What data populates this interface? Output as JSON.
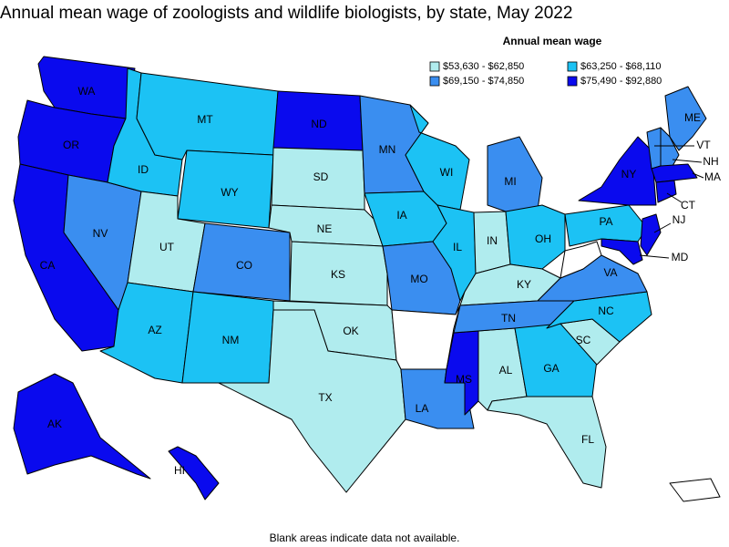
{
  "title": "Annual mean wage of zoologists and wildlife biologists, by state, May 2022",
  "legend": {
    "title": "Annual mean wage",
    "items": [
      {
        "label": "$53,630 - $62,850",
        "color": "#b0ecee",
        "states": [
          "UT",
          "SD",
          "NE",
          "KS",
          "OK",
          "TX",
          "KY",
          "IN",
          "AL",
          "SC",
          "FL"
        ]
      },
      {
        "label": "$63,250 - $68,110",
        "color": "#1cc2f4",
        "states": [
          "MT",
          "ID",
          "WY",
          "AZ",
          "NM",
          "IA",
          "WI",
          "IL",
          "OH",
          "PA",
          "GA",
          "NC"
        ]
      },
      {
        "label": "$69,150 - $74,850",
        "color": "#3a8ef0",
        "states": [
          "NV",
          "CO",
          "MN",
          "MI",
          "MO",
          "LA",
          "TN",
          "VA",
          "ME",
          "NH",
          "VT"
        ]
      },
      {
        "label": "$75,490 - $92,880",
        "color": "#0a0aee",
        "states": [
          "WA",
          "OR",
          "CA",
          "ND",
          "MS",
          "NY",
          "MA",
          "CT",
          "NJ",
          "MD",
          "AK",
          "HI"
        ]
      }
    ]
  },
  "note": "Blank areas indicate data not available."
}
